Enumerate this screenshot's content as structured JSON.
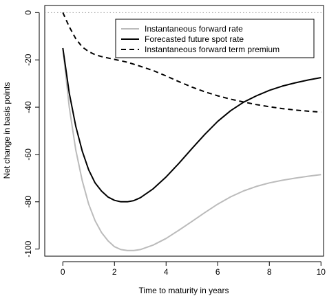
{
  "chart_data": {
    "type": "line",
    "title": "",
    "xlabel": "Time to maturity in years",
    "ylabel": "Net change in basis points",
    "xlim": [
      -0.7,
      10.1
    ],
    "ylim": [
      -103,
      3
    ],
    "x_ticks": [
      0,
      2,
      4,
      6,
      8,
      10
    ],
    "y_ticks": [
      0,
      -20,
      -40,
      -60,
      -80,
      -100
    ],
    "reference_line": {
      "y": 0,
      "style": "dotted",
      "color": "#999999"
    },
    "legend_position": "top-right",
    "grid": false,
    "series": [
      {
        "name": "Instantaneous forward rate",
        "color": "#bbbbbb",
        "dash": "solid",
        "x": [
          0,
          0.25,
          0.5,
          0.75,
          1,
          1.25,
          1.5,
          1.75,
          2,
          2.25,
          2.5,
          2.75,
          3,
          3.5,
          4,
          4.5,
          5,
          5.5,
          6,
          6.5,
          7,
          7.5,
          8,
          8.5,
          9,
          9.5,
          10
        ],
        "y": [
          -15,
          -40,
          -58,
          -71,
          -81,
          -88,
          -93,
          -96.5,
          -99,
          -100.2,
          -100.6,
          -100.6,
          -100.2,
          -98.3,
          -95.5,
          -92,
          -88.3,
          -84.6,
          -81,
          -77.9,
          -75.4,
          -73.5,
          -72,
          -70.9,
          -70,
          -69.2,
          -68.5
        ]
      },
      {
        "name": "Forecasted future spot rate",
        "color": "#000000",
        "dash": "solid",
        "x": [
          0,
          0.25,
          0.5,
          0.75,
          1,
          1.25,
          1.5,
          1.75,
          2,
          2.25,
          2.5,
          2.75,
          3,
          3.5,
          4,
          4.5,
          5,
          5.5,
          6,
          6.5,
          7,
          7.5,
          8,
          8.5,
          9,
          9.5,
          10
        ],
        "y": [
          -15,
          -34,
          -48,
          -58.5,
          -66.5,
          -72,
          -75.5,
          -78,
          -79.4,
          -80,
          -80,
          -79.5,
          -78.3,
          -74.5,
          -69.5,
          -63.7,
          -57.5,
          -51.5,
          -46,
          -41.5,
          -37.9,
          -35.2,
          -32.9,
          -31.1,
          -29.7,
          -28.5,
          -27.5
        ]
      },
      {
        "name": "Instantaneous forward term premium",
        "color": "#000000",
        "dash": "dashed",
        "x": [
          0,
          0.25,
          0.5,
          0.75,
          1,
          1.25,
          1.5,
          2,
          2.5,
          3,
          3.5,
          4,
          4.5,
          5,
          5.5,
          6,
          6.5,
          7,
          7.5,
          8,
          8.5,
          9,
          9.5,
          10
        ],
        "y": [
          0,
          -6,
          -11,
          -14.5,
          -16.5,
          -17.8,
          -18.6,
          -19.8,
          -21,
          -22.7,
          -24.5,
          -26.8,
          -29.2,
          -31.5,
          -33.5,
          -35.2,
          -36.6,
          -37.8,
          -38.9,
          -39.8,
          -40.6,
          -41.2,
          -41.7,
          -42.1
        ]
      }
    ]
  }
}
